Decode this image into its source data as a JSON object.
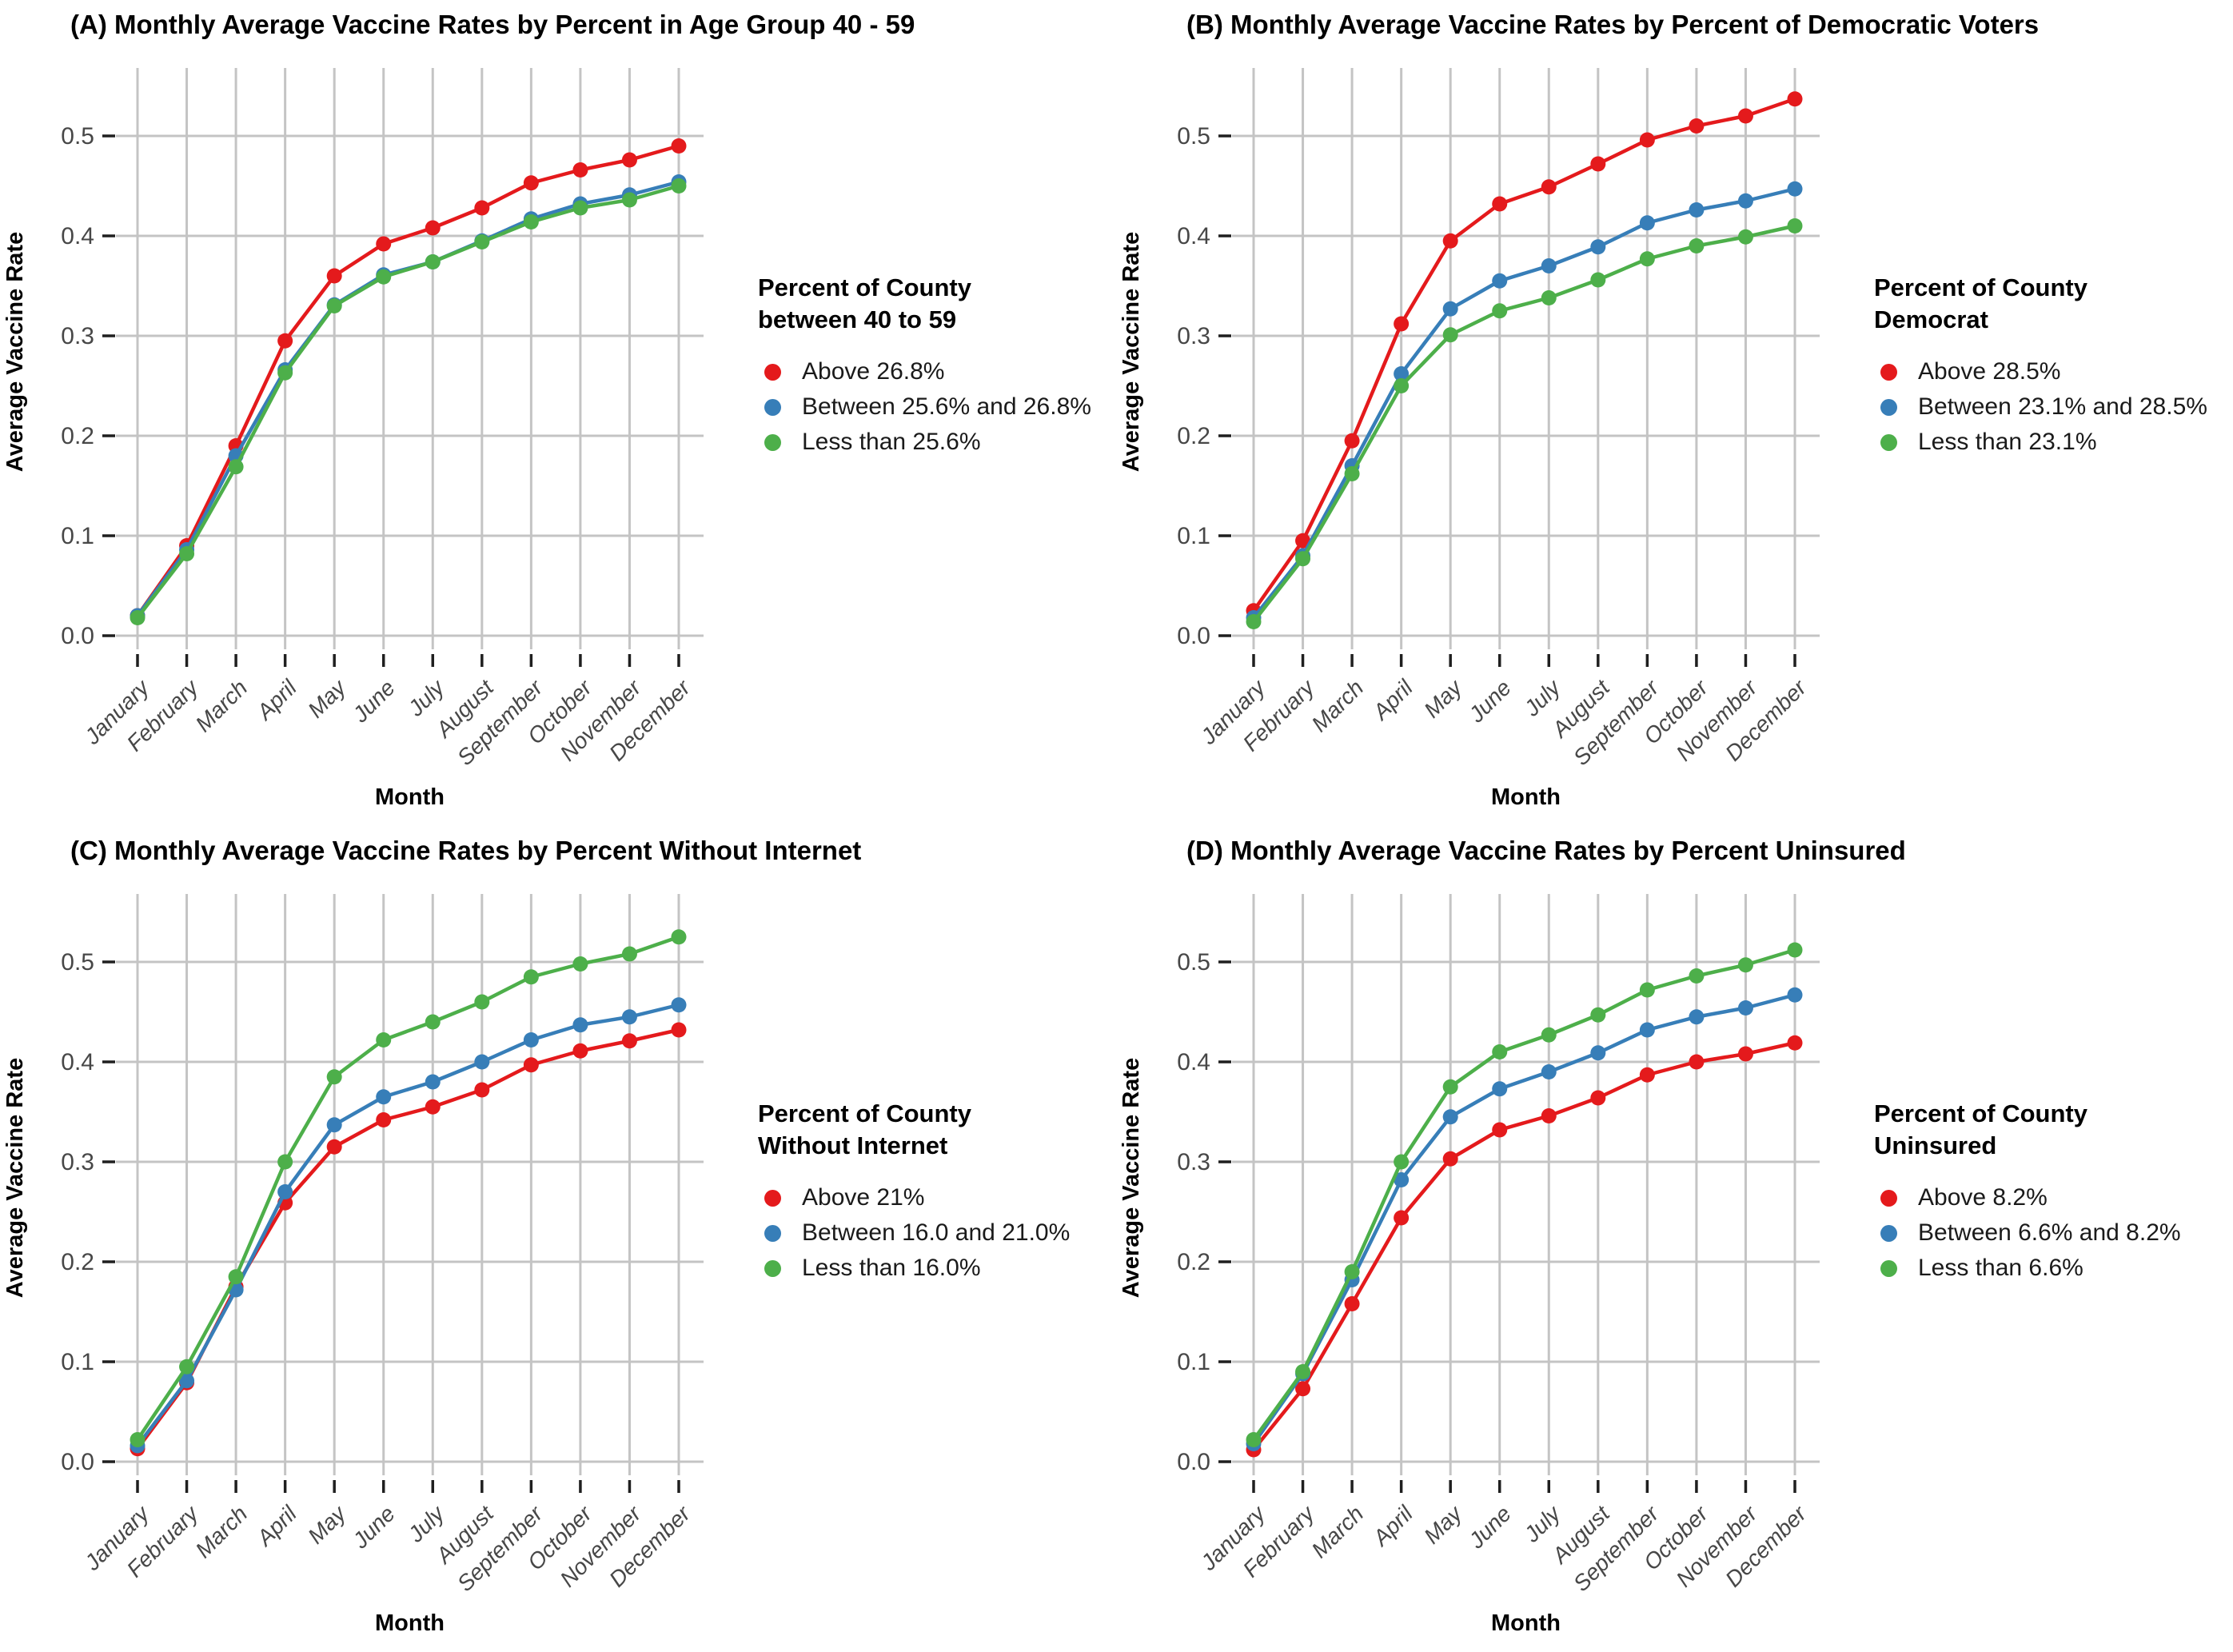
{
  "page": {
    "background": "#ffffff"
  },
  "colors": {
    "red": "#E41A1C",
    "blue": "#377EB8",
    "green": "#4DAF4A",
    "grid": "#C4C4C4",
    "tick_mark": "#1f1f1f",
    "tick_text": "#474747",
    "axis_title_text": "#000000"
  },
  "axes": {
    "x_label": "Month",
    "y_label": "Average Vaccine Rate",
    "y_ticks": [
      "0.0",
      "0.1",
      "0.2",
      "0.3",
      "0.4",
      "0.5"
    ]
  },
  "chart_data": [
    {
      "id": "A",
      "type": "line",
      "title": "(A) Monthly Average Vaccine Rates by Percent in Age Group 40 - 59",
      "xlabel": "Month",
      "ylabel": "Average Vaccine Rate",
      "ylim": [
        0,
        0.55
      ],
      "grid": true,
      "legend_position": "right",
      "legend_title": "Percent of County\nbetween 40 to 59",
      "categories": [
        "January",
        "February",
        "March",
        "April",
        "May",
        "June",
        "July",
        "August",
        "September",
        "October",
        "November",
        "December"
      ],
      "series": [
        {
          "name": "Above 26.8%",
          "color_key": "red",
          "values": [
            0.02,
            0.09,
            0.19,
            0.295,
            0.36,
            0.392,
            0.408,
            0.428,
            0.453,
            0.466,
            0.476,
            0.49
          ]
        },
        {
          "name": "Between 25.6% and 26.8%",
          "color_key": "blue",
          "values": [
            0.02,
            0.086,
            0.18,
            0.266,
            0.331,
            0.361,
            0.374,
            0.395,
            0.417,
            0.432,
            0.441,
            0.454
          ]
        },
        {
          "name": "Less than 25.6%",
          "color_key": "green",
          "values": [
            0.018,
            0.082,
            0.169,
            0.263,
            0.33,
            0.359,
            0.374,
            0.394,
            0.414,
            0.428,
            0.436,
            0.45
          ]
        }
      ]
    },
    {
      "id": "B",
      "type": "line",
      "title": "(B) Monthly Average Vaccine Rates by Percent of Democratic Voters",
      "xlabel": "Month",
      "ylabel": "Average Vaccine Rate",
      "ylim": [
        0,
        0.55
      ],
      "grid": true,
      "legend_position": "right",
      "legend_title": "Percent of County\nDemocrat",
      "categories": [
        "January",
        "February",
        "March",
        "April",
        "May",
        "June",
        "July",
        "August",
        "September",
        "October",
        "November",
        "December"
      ],
      "series": [
        {
          "name": "Above 28.5%",
          "color_key": "red",
          "values": [
            0.025,
            0.095,
            0.195,
            0.312,
            0.395,
            0.432,
            0.449,
            0.472,
            0.496,
            0.51,
            0.52,
            0.537
          ]
        },
        {
          "name": "Between 23.1% and 28.5%",
          "color_key": "blue",
          "values": [
            0.018,
            0.08,
            0.17,
            0.262,
            0.327,
            0.355,
            0.37,
            0.389,
            0.413,
            0.426,
            0.435,
            0.447
          ]
        },
        {
          "name": "Less than 23.1%",
          "color_key": "green",
          "values": [
            0.014,
            0.077,
            0.162,
            0.25,
            0.301,
            0.325,
            0.338,
            0.356,
            0.377,
            0.39,
            0.399,
            0.41
          ]
        }
      ]
    },
    {
      "id": "C",
      "type": "line",
      "title": "(C) Monthly Average Vaccine Rates by Percent Without Internet",
      "xlabel": "Month",
      "ylabel": "Average Vaccine Rate",
      "ylim": [
        0,
        0.55
      ],
      "grid": true,
      "legend_position": "right",
      "legend_title": "Percent of County\nWithout Internet",
      "categories": [
        "January",
        "February",
        "March",
        "April",
        "May",
        "June",
        "July",
        "August",
        "September",
        "October",
        "November",
        "December"
      ],
      "series": [
        {
          "name": "Above 21%",
          "color_key": "red",
          "values": [
            0.013,
            0.079,
            0.175,
            0.259,
            0.315,
            0.342,
            0.355,
            0.372,
            0.397,
            0.411,
            0.421,
            0.432
          ]
        },
        {
          "name": "Between 16.0 and 21.0%",
          "color_key": "blue",
          "values": [
            0.016,
            0.081,
            0.172,
            0.27,
            0.337,
            0.365,
            0.38,
            0.4,
            0.422,
            0.437,
            0.445,
            0.457
          ]
        },
        {
          "name": "Less than 16.0%",
          "color_key": "green",
          "values": [
            0.022,
            0.095,
            0.185,
            0.3,
            0.385,
            0.422,
            0.44,
            0.46,
            0.485,
            0.498,
            0.508,
            0.525
          ]
        }
      ]
    },
    {
      "id": "D",
      "type": "line",
      "title": "(D) Monthly Average Vaccine Rates by Percent Uninsured",
      "xlabel": "Month",
      "ylabel": "Average Vaccine Rate",
      "ylim": [
        0,
        0.55
      ],
      "grid": true,
      "legend_position": "right",
      "legend_title": "Percent of County\nUninsured",
      "categories": [
        "January",
        "February",
        "March",
        "April",
        "May",
        "June",
        "July",
        "August",
        "September",
        "October",
        "November",
        "December"
      ],
      "series": [
        {
          "name": "Above 8.2%",
          "color_key": "red",
          "values": [
            0.012,
            0.073,
            0.158,
            0.244,
            0.303,
            0.332,
            0.346,
            0.364,
            0.387,
            0.4,
            0.408,
            0.419
          ]
        },
        {
          "name": "Between 6.6% and 8.2%",
          "color_key": "blue",
          "values": [
            0.018,
            0.088,
            0.182,
            0.282,
            0.345,
            0.373,
            0.39,
            0.409,
            0.432,
            0.445,
            0.454,
            0.467
          ]
        },
        {
          "name": "Less than 6.6%",
          "color_key": "green",
          "values": [
            0.022,
            0.09,
            0.19,
            0.3,
            0.375,
            0.41,
            0.427,
            0.447,
            0.472,
            0.486,
            0.497,
            0.512
          ]
        }
      ]
    }
  ]
}
